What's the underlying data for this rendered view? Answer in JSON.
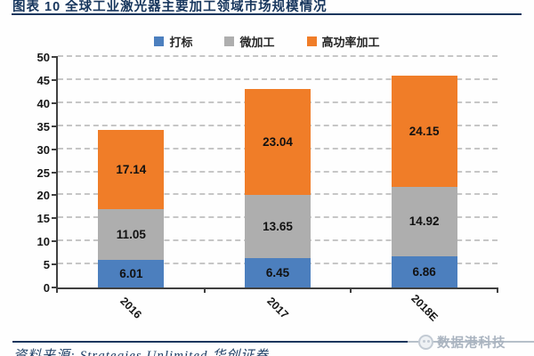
{
  "header": {
    "title": "图表 10  全球工业激光器主要加工领域市场规模情况"
  },
  "chart_data": {
    "type": "bar",
    "stacked": true,
    "title": "全球工业激光器主要加工领域市场规模情况",
    "categories": [
      "2016",
      "2017",
      "2018E"
    ],
    "series": [
      {
        "name": "打标",
        "color": "#4c7fbe",
        "values": [
          6.01,
          6.45,
          6.86
        ]
      },
      {
        "name": "微加工",
        "color": "#aeaeae",
        "values": [
          11.05,
          13.65,
          14.92
        ]
      },
      {
        "name": "高功率加工",
        "color": "#f07d28",
        "values": [
          17.14,
          23.04,
          24.15
        ]
      }
    ],
    "ylim": [
      0,
      50
    ],
    "ytick_step": 5,
    "yticks": [
      0,
      5,
      10,
      15,
      20,
      25,
      30,
      35,
      40,
      45,
      50
    ],
    "grid": "horizontal-dashed",
    "legend_position": "top",
    "xlabel_rotation_deg": 45,
    "data_labels": "inside-center"
  },
  "footer": {
    "source": "资料来源: Strategies Unlimited 华创证券",
    "watermark": "数据港科技"
  },
  "colors": {
    "title": "#17365d",
    "rule": "#17365d",
    "axis": "#404040",
    "gridline": "#c6c6c6",
    "watermark": "#aab4c0"
  }
}
